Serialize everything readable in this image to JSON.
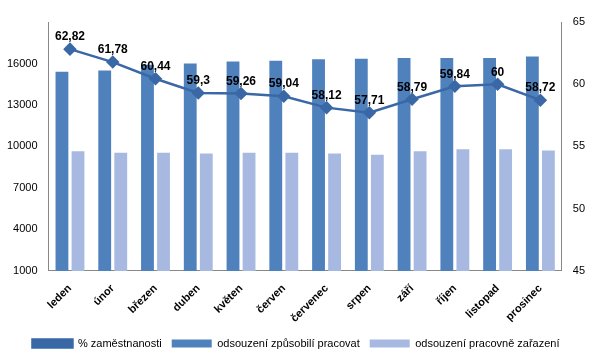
{
  "chart_data": {
    "type": "bar",
    "categories": [
      "leden",
      "únor",
      "březen",
      "duben",
      "květen",
      "červen",
      "červenec",
      "srpen",
      "září",
      "říjen",
      "listopad",
      "prosinec"
    ],
    "series": [
      {
        "name": "odsouzení způsobilí pracovat",
        "type": "bar",
        "color": "#4f81bd",
        "values": [
          15400,
          15500,
          15900,
          16000,
          16150,
          16200,
          16300,
          16350,
          16400,
          16400,
          16400,
          16500
        ]
      },
      {
        "name": "odsouzení pracovně zařazení",
        "type": "bar",
        "color": "#a7b9e1",
        "values": [
          9650,
          9550,
          9550,
          9500,
          9550,
          9550,
          9500,
          9400,
          9650,
          9800,
          9800,
          9700
        ]
      },
      {
        "name": "% zaměstnanosti",
        "type": "line",
        "axis": "y2",
        "color": "#3a68a6",
        "marker": "diamond",
        "data_labels": true,
        "values": [
          62.82,
          61.78,
          60.44,
          59.3,
          59.26,
          59.04,
          58.12,
          57.71,
          58.79,
          59.84,
          60,
          58.72
        ],
        "value_labels": [
          "62,82",
          "61,78",
          "60,44",
          "59,3",
          "59,26",
          "59,04",
          "58,12",
          "57,71",
          "58,79",
          "59,84",
          "60",
          "58,72"
        ]
      }
    ],
    "ylim": [
      1000,
      19000
    ],
    "yticks": [
      1000,
      4000,
      7000,
      10000,
      13000,
      16000
    ],
    "y2lim": [
      45,
      65
    ],
    "y2ticks": [
      45,
      50,
      55,
      60,
      65
    ],
    "grid": false,
    "legend": "bottom"
  }
}
